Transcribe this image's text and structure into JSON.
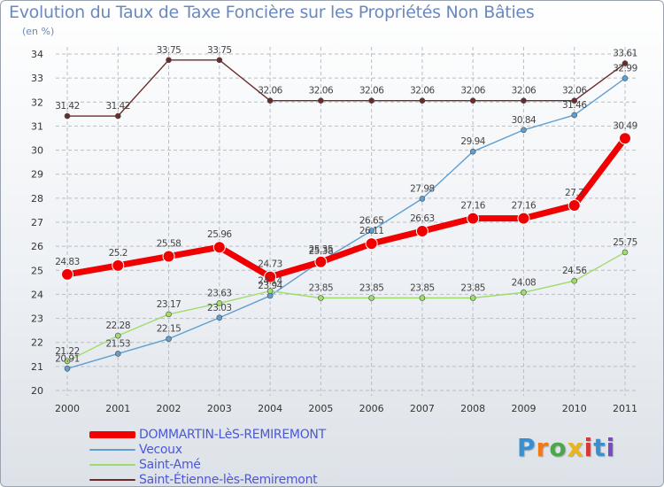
{
  "header": {
    "title": "Evolution du Taux de Taxe Foncière sur les Propriétés Non Bâties",
    "unit": "(en %)"
  },
  "logo": {
    "text": "Proxiti"
  },
  "colors": {
    "axis_text": "#333333",
    "grid": "#b8bec6",
    "label_text": "#444444"
  },
  "chart_data": {
    "type": "line",
    "title": "Evolution du Taux de Taxe Foncière sur les Propriétés Non Bâties",
    "ylabel": "(en %)",
    "xlabel": "",
    "x": [
      "2000",
      "2001",
      "2002",
      "2003",
      "2004",
      "2005",
      "2006",
      "2007",
      "2008",
      "2009",
      "2010",
      "2011"
    ],
    "ylim": [
      20,
      34
    ],
    "yticks": [
      "20",
      "21",
      "22",
      "23",
      "24",
      "25",
      "26",
      "27",
      "28",
      "29",
      "30",
      "31",
      "32",
      "33",
      "34"
    ],
    "legend_position": "bottom-left",
    "series": [
      {
        "name": "Saint-Étienne-lès-Remiremont",
        "color": "#6b2b2b",
        "values": [
          31.42,
          31.42,
          33.75,
          33.75,
          32.06,
          32.06,
          32.06,
          32.06,
          32.06,
          32.06,
          32.06,
          33.61
        ],
        "labels": [
          "31.42",
          "31.42",
          "33.75",
          "33.75",
          "32.06",
          "32.06",
          "32.06",
          "32.06",
          "32.06",
          "32.06",
          "32.06",
          "33.61"
        ]
      },
      {
        "name": "Vecoux",
        "color": "#5f9fd0",
        "values": [
          20.91,
          21.53,
          22.15,
          23.03,
          23.94,
          25.38,
          26.65,
          27.98,
          29.94,
          30.84,
          31.46,
          32.99
        ],
        "labels": [
          "20.91",
          "21.53",
          "22.15",
          "23.03",
          "23.94",
          "25.38",
          "26.65",
          "27.98",
          "29.94",
          "30.84",
          "31.46",
          "32.99"
        ]
      },
      {
        "name": "Saint-Amé",
        "color": "#9fdc6a",
        "values": [
          21.22,
          22.28,
          23.17,
          23.63,
          24.14,
          23.85,
          23.85,
          23.85,
          23.85,
          24.08,
          24.56,
          25.75
        ],
        "labels": [
          "21.22",
          "22.28",
          "23.17",
          "23.63",
          "24.14",
          "23.85",
          "23.85",
          "23.85",
          "23.85",
          "24.08",
          "24.56",
          "25.75"
        ]
      },
      {
        "name": "DOMMARTIN-LèS-REMIREMONT",
        "color": "#f00000",
        "values": [
          24.83,
          25.2,
          25.58,
          25.96,
          24.73,
          25.35,
          26.11,
          26.63,
          27.16,
          27.16,
          27.7,
          30.49
        ],
        "labels": [
          "24.83",
          "25.2",
          "25.58",
          "25.96",
          "24.73",
          "25.35",
          "26.11",
          "26.63",
          "27.16",
          "27.16",
          "27.7",
          "30.49"
        ]
      }
    ],
    "legend": [
      {
        "name": "DOMMARTIN-LèS-REMIREMONT",
        "color": "#f00000"
      },
      {
        "name": "Vecoux",
        "color": "#5f9fd0"
      },
      {
        "name": "Saint-Amé",
        "color": "#9fdc6a"
      },
      {
        "name": "Saint-Étienne-lès-Remiremont",
        "color": "#6b2b2b"
      }
    ]
  }
}
